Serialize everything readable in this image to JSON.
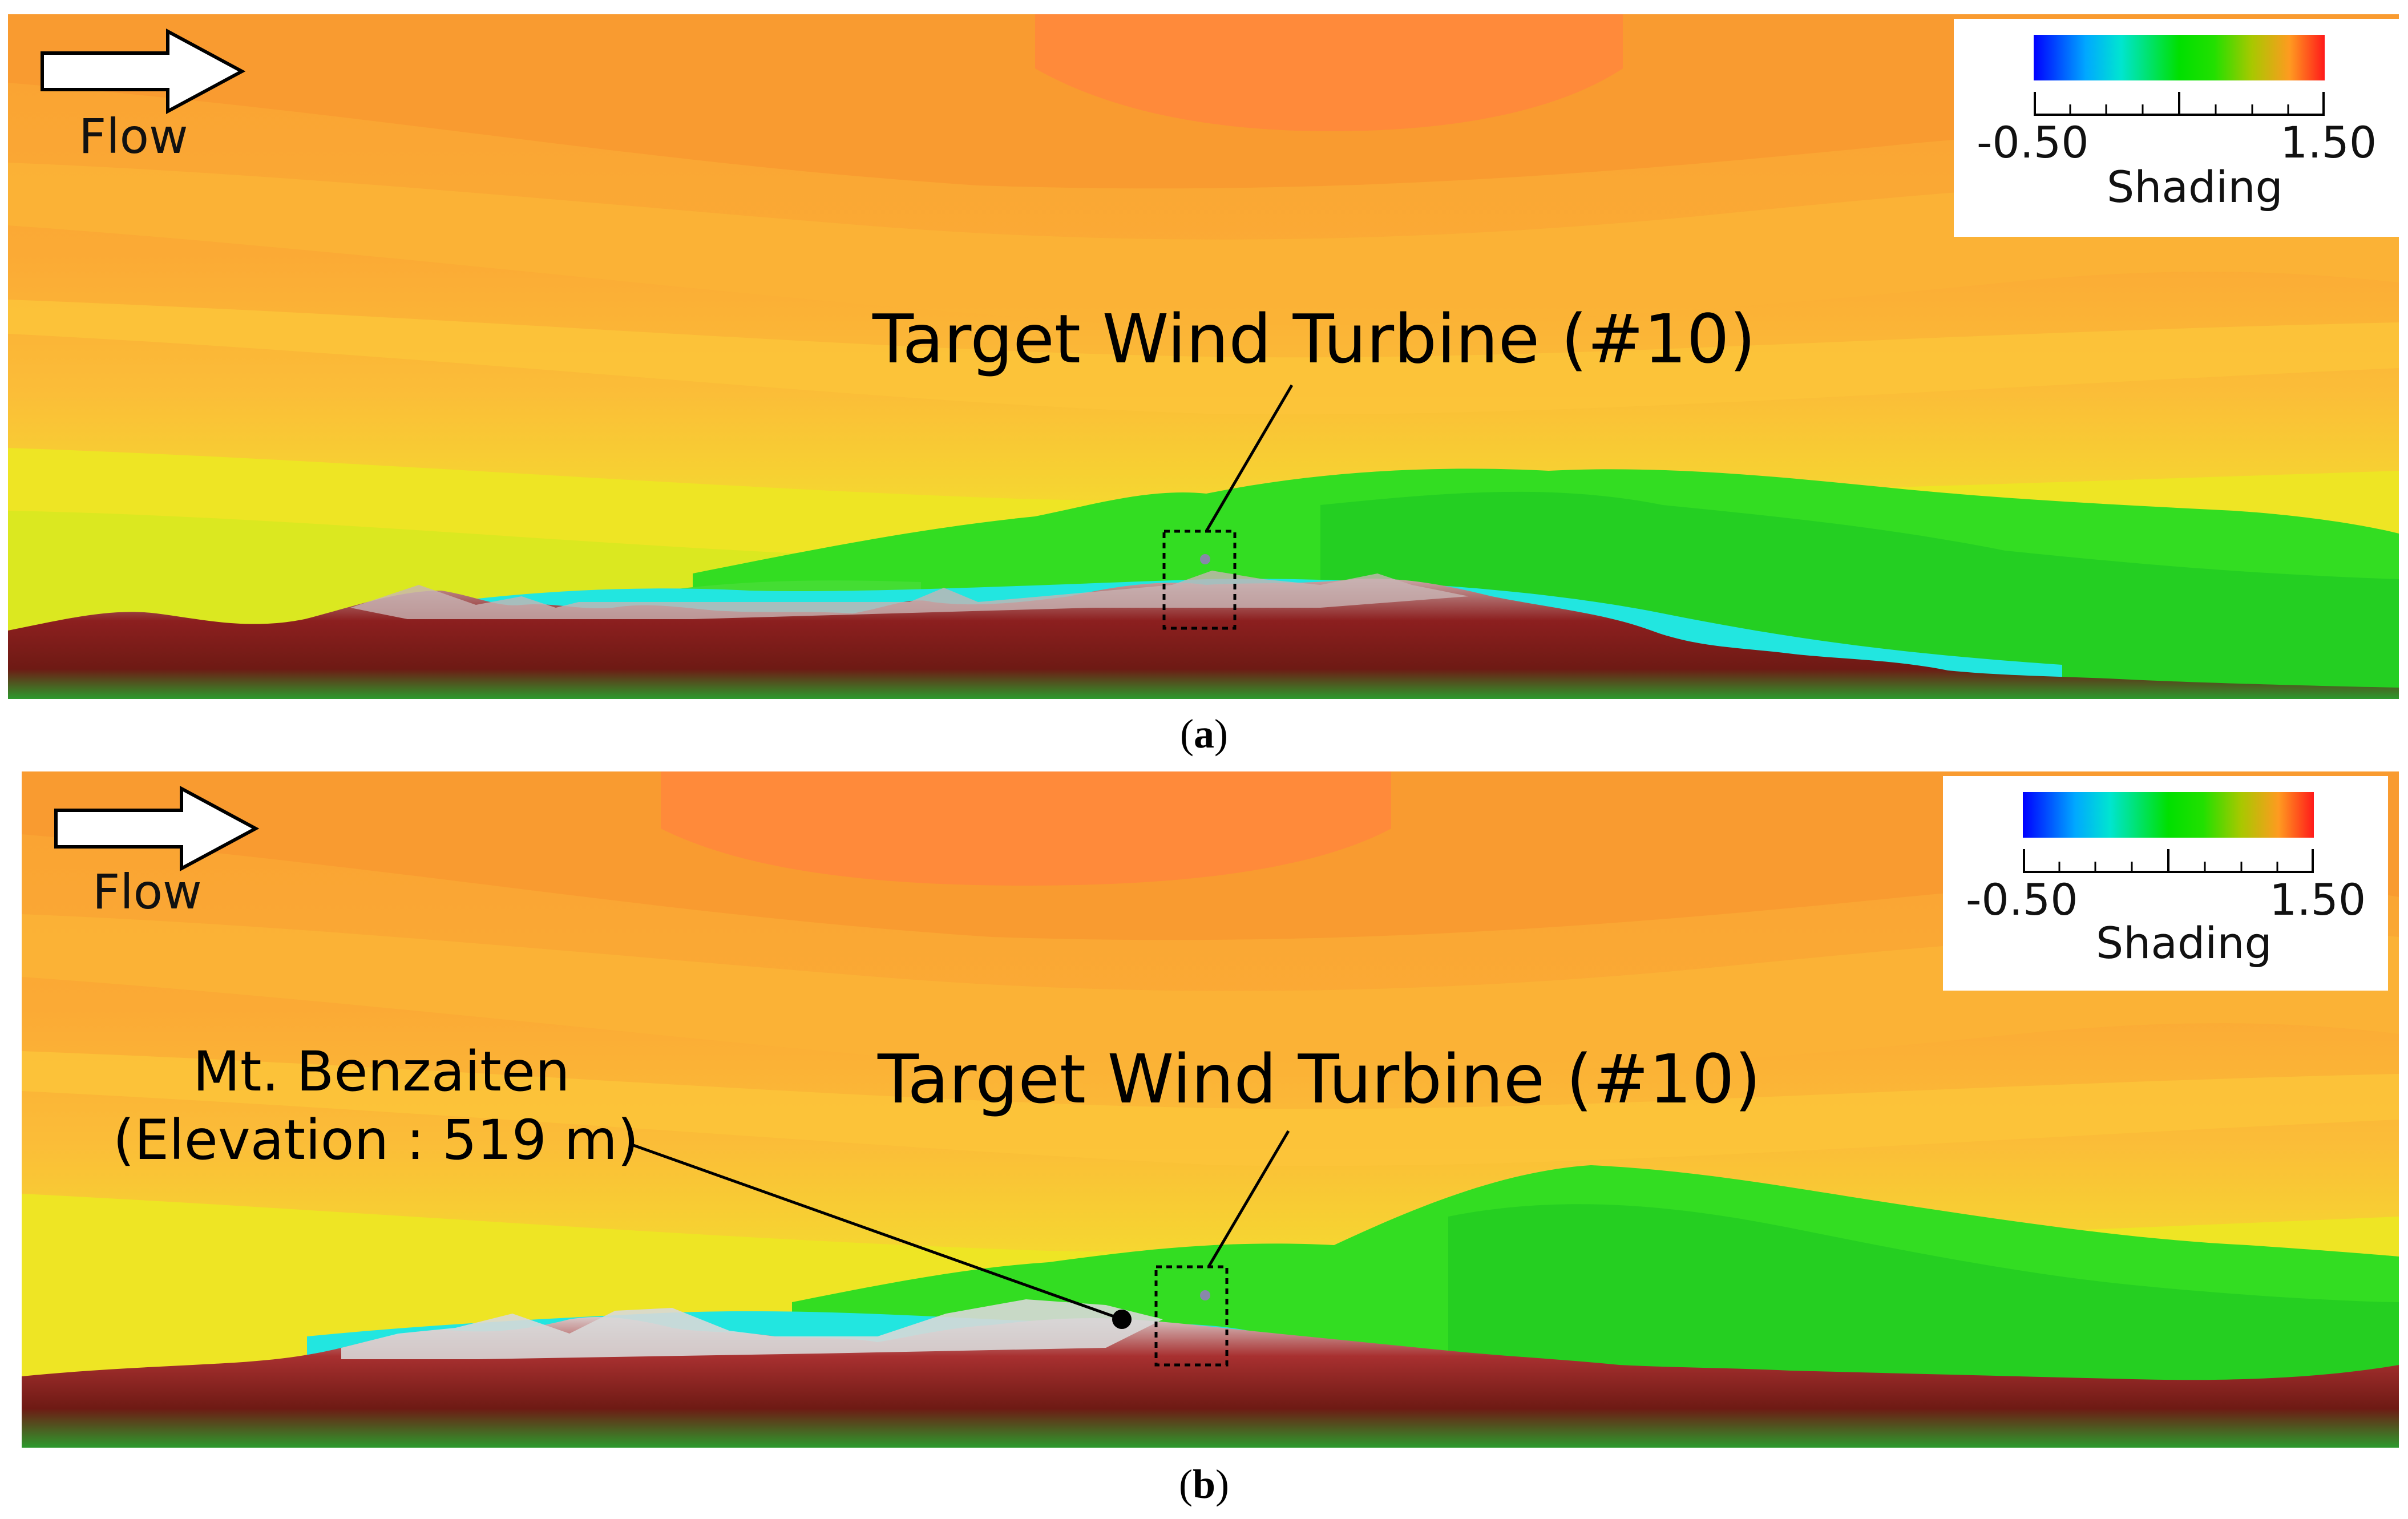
{
  "panels": [
    {
      "id": "a",
      "caption": "a",
      "flow_label": "Flow",
      "legend": {
        "min_label": "-0.50",
        "max_label": "1.50",
        "title": "Shading"
      },
      "turbine_label": "Target Wind Turbine (#10)"
    },
    {
      "id": "b",
      "caption": "b",
      "flow_label": "Flow",
      "legend": {
        "min_label": "-0.50",
        "max_label": "1.50",
        "title": "Shading"
      },
      "turbine_label": "Target Wind Turbine (#10)",
      "mountain_label_line1": "Mt. Benzaiten",
      "mountain_label_line2": "(Elevation : 519 m)"
    }
  ],
  "colors": {
    "sky_top": "#f9a535",
    "sky_band": "#fbb23a",
    "core_orange": "#ff8a3a",
    "yellow": "#f2e81e",
    "green": "#33dd22",
    "cyan": "#22e6e0",
    "terrain_red": "#8a1a1a",
    "terrain_grey": "#c8c8c8",
    "terrain_green": "#2d9a2d"
  }
}
